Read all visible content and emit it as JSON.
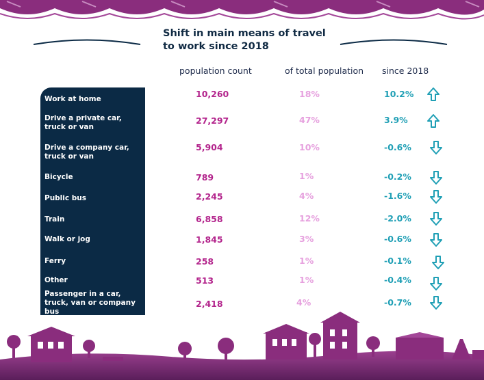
{
  "title": {
    "line1": "Shift in main means of travel",
    "line2": "to work since 2018"
  },
  "columns": {
    "population_count": "population count",
    "of_total": "of total population",
    "since": "since 2018"
  },
  "colors": {
    "navy": "#0b2a45",
    "magenta": "#b3248c",
    "pink": "#e6a0de",
    "teal": "#1f9fb5",
    "purple_band": "#8a2d7d"
  },
  "rows": [
    {
      "label": "Work at home",
      "count": "10,260",
      "pct": "18%",
      "change": "10.2%",
      "direction": "up"
    },
    {
      "label": "Drive a private car, truck or van",
      "count": "27,297",
      "pct": "47%",
      "change": "3.9%",
      "direction": "up"
    },
    {
      "label": "Drive a company car, truck or van",
      "count": "5,904",
      "pct": "10%",
      "change": "-0.6%",
      "direction": "down"
    },
    {
      "label": "Bicycle",
      "count": "789",
      "pct": "1%",
      "change": "-0.2%",
      "direction": "down"
    },
    {
      "label": "Public bus",
      "count": "2,245",
      "pct": "4%",
      "change": "-1.6%",
      "direction": "down"
    },
    {
      "label": "Train",
      "count": "6,858",
      "pct": "12%",
      "change": "-2.0%",
      "direction": "down"
    },
    {
      "label": "Walk or jog",
      "count": "1,845",
      "pct": "3%",
      "change": "-0.6%",
      "direction": "down"
    },
    {
      "label": "Ferry",
      "count": "258",
      "pct": "1%",
      "change": "-0.1%",
      "direction": "down"
    },
    {
      "label": "Other",
      "count": "513",
      "pct": "1%",
      "change": "-0.4%",
      "direction": "down"
    },
    {
      "label": "Passenger in a car, truck, van or company bus",
      "count": "2,418",
      "pct": "4%",
      "change": "-0.7%",
      "direction": "down"
    }
  ],
  "icons": {
    "up": "arrow-up-icon",
    "down": "arrow-down-icon"
  }
}
